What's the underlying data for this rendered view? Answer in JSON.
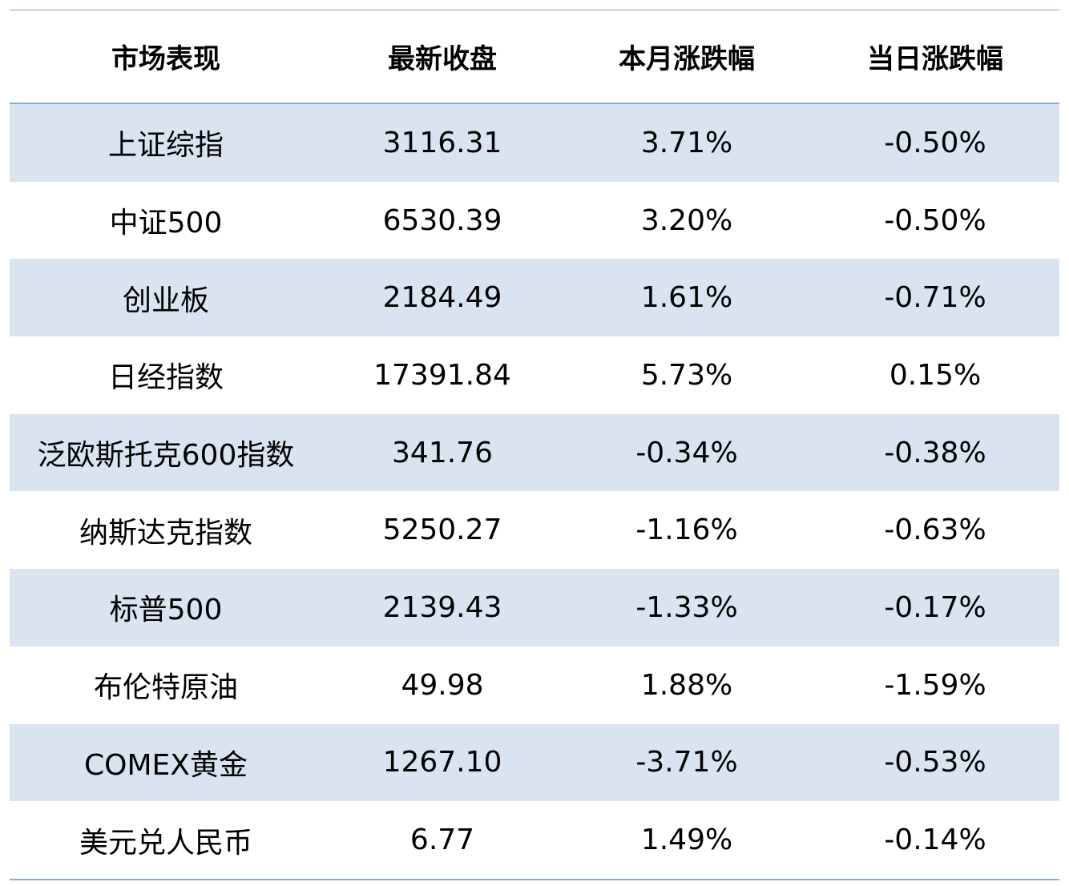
{
  "table": {
    "headers": [
      "市场表现",
      "最新收盘",
      "本月涨跌幅",
      "当日涨跌幅"
    ],
    "rows": [
      {
        "name": "上证综指",
        "close": "3116.31",
        "month": "3.71%",
        "day": "-0.50%"
      },
      {
        "name": "中证500",
        "close": "6530.39",
        "month": "3.20%",
        "day": "-0.50%"
      },
      {
        "name": "创业板",
        "close": "2184.49",
        "month": "1.61%",
        "day": "-0.71%"
      },
      {
        "name": "日经指数",
        "close": "17391.84",
        "month": "5.73%",
        "day": "0.15%"
      },
      {
        "name": "泛欧斯托克600指数",
        "close": "341.76",
        "month": "-0.34%",
        "day": "-0.38%"
      },
      {
        "name": "纳斯达克指数",
        "close": "5250.27",
        "month": "-1.16%",
        "day": "-0.63%"
      },
      {
        "name": "标普500",
        "close": "2139.43",
        "month": "-1.33%",
        "day": "-0.17%"
      },
      {
        "name": "布伦特原油",
        "close": "49.98",
        "month": "1.88%",
        "day": "-1.59%"
      },
      {
        "name": "COMEX黄金",
        "close": "1267.10",
        "month": "-3.71%",
        "day": "-0.53%"
      },
      {
        "name": "美元兑人民币",
        "close": "6.77",
        "month": "1.49%",
        "day": "-0.14%"
      }
    ]
  },
  "colors": {
    "row_shade": "#dae3f0",
    "rule": "#8eaadb"
  }
}
